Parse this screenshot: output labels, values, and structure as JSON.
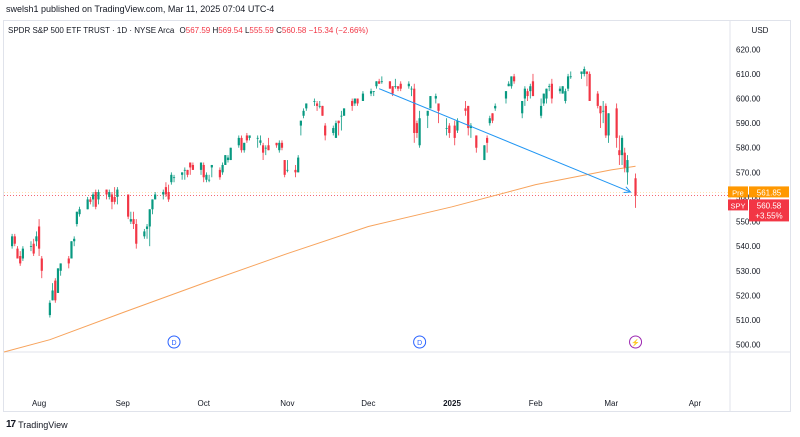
{
  "header": {
    "published": "swelsh1 published on TradingView.com, Mar 11, 2025 07:04 UTC-4"
  },
  "legend": {
    "symbol": "SPDR S&P 500 ETF TRUST · 1D · NYSE Arca",
    "o_label": "O",
    "o_value": "567.59",
    "h_label": "H",
    "h_value": "569.54",
    "l_label": "L",
    "l_value": "555.59",
    "c_label": "C",
    "c_value": "560.58",
    "change": "−15.34 (−2.66%)"
  },
  "currency": "USD",
  "footer": {
    "brand": "TradingView",
    "logo_glyph": "17"
  },
  "colors": {
    "up": "#089981",
    "down": "#f23645",
    "ma": "#f7a35c",
    "arrow": "#2196f3",
    "pre": "#ff9800",
    "event": "#2962ff",
    "split": "#9c27b0"
  },
  "chart_data": {
    "type": "candlestick",
    "ylim": [
      497,
      625
    ],
    "y_ticks": [
      500,
      510,
      520,
      530,
      540,
      550,
      560,
      570,
      580,
      590,
      600,
      610,
      620
    ],
    "y_tick_labels": [
      "500.00",
      "510.00",
      "520.00",
      "530.00",
      "540.00",
      "550.00",
      "560.00",
      "570.00",
      "580.00",
      "590.00",
      "600.00",
      "610.00",
      "620.00"
    ],
    "x_labels": [
      {
        "date": "2024-08-01",
        "label": "Aug"
      },
      {
        "date": "2024-09-01",
        "label": "Sep"
      },
      {
        "date": "2024-10-01",
        "label": "Oct"
      },
      {
        "date": "2024-11-01",
        "label": "Nov"
      },
      {
        "date": "2024-12-01",
        "label": "Dec"
      },
      {
        "date": "2025-01-01",
        "label": "2025"
      },
      {
        "date": "2025-02-01",
        "label": "Feb"
      },
      {
        "date": "2025-03-01",
        "label": "Mar"
      },
      {
        "date": "2025-04-01",
        "label": "Apr"
      }
    ],
    "x_range": [
      "2024-07-19",
      "2025-04-14"
    ],
    "candles": [
      [
        "2024-07-22",
        540,
        545,
        539,
        544
      ],
      [
        "2024-07-23",
        544,
        545,
        540,
        541
      ],
      [
        "2024-07-24",
        539,
        540,
        535,
        535
      ],
      [
        "2024-07-25",
        536,
        538,
        532,
        533
      ],
      [
        "2024-07-26",
        535,
        540,
        534,
        539
      ],
      [
        "2024-07-29",
        540,
        542,
        538,
        540
      ],
      [
        "2024-07-30",
        541,
        543,
        536,
        537
      ],
      [
        "2024-07-31",
        542,
        546,
        540,
        544
      ],
      [
        "2024-08-01",
        548,
        551,
        536,
        539
      ],
      [
        "2024-08-02",
        535,
        536,
        527,
        530
      ],
      [
        "2024-08-05",
        512,
        518,
        511,
        517
      ],
      [
        "2024-08-06",
        518,
        525,
        518,
        522
      ],
      [
        "2024-08-07",
        526,
        527,
        517,
        518
      ],
      [
        "2024-08-08",
        521,
        531,
        521,
        531
      ],
      [
        "2024-08-09",
        530,
        533,
        528,
        533
      ],
      [
        "2024-08-12",
        535,
        536,
        531,
        533
      ],
      [
        "2024-08-13",
        535,
        542,
        535,
        542
      ],
      [
        "2024-08-14",
        542,
        544,
        540,
        543
      ],
      [
        "2024-08-15",
        549,
        554,
        548,
        554
      ],
      [
        "2024-08-16",
        553,
        556,
        552,
        555
      ],
      [
        "2024-08-19",
        555,
        560,
        555,
        559
      ],
      [
        "2024-08-20",
        559,
        560,
        557,
        558
      ],
      [
        "2024-08-21",
        559,
        562,
        556,
        561
      ],
      [
        "2024-08-22",
        562,
        563,
        555,
        556
      ],
      [
        "2024-08-23",
        559,
        563,
        557,
        562
      ],
      [
        "2024-08-26",
        563,
        563,
        559,
        561
      ],
      [
        "2024-08-27",
        560,
        563,
        559,
        562
      ],
      [
        "2024-08-28",
        561,
        562,
        555,
        558
      ],
      [
        "2024-08-29",
        560,
        564,
        557,
        558
      ],
      [
        "2024-08-30",
        560,
        564,
        557,
        563
      ],
      [
        "2024-09-03",
        561,
        561,
        551,
        552
      ],
      [
        "2024-09-04",
        550,
        554,
        549,
        551
      ],
      [
        "2024-09-05",
        551,
        554,
        547,
        549
      ],
      [
        "2024-09-06",
        549,
        551,
        539,
        541
      ],
      [
        "2024-09-09",
        544,
        547,
        543,
        546
      ],
      [
        "2024-09-10",
        547,
        549,
        543,
        548
      ],
      [
        "2024-09-11",
        548,
        555,
        540,
        555
      ],
      [
        "2024-09-12",
        555,
        559,
        553,
        559
      ],
      [
        "2024-09-13",
        559,
        562,
        559,
        561
      ],
      [
        "2024-09-16",
        561,
        563,
        559,
        562
      ],
      [
        "2024-09-17",
        564,
        566,
        560,
        561
      ],
      [
        "2024-09-18",
        562,
        565,
        558,
        559
      ],
      [
        "2024-09-19",
        566,
        570,
        565,
        569
      ],
      [
        "2024-09-20",
        568,
        569,
        566,
        568
      ],
      [
        "2024-09-23",
        569,
        570,
        567,
        570
      ],
      [
        "2024-09-24",
        571,
        572,
        567,
        571
      ],
      [
        "2024-09-25",
        571,
        571,
        568,
        569
      ],
      [
        "2024-09-26",
        574,
        574,
        569,
        572
      ],
      [
        "2024-09-27",
        573,
        574,
        571,
        571
      ],
      [
        "2024-09-30",
        571,
        574,
        569,
        574
      ],
      [
        "2024-10-01",
        573,
        574,
        566,
        568
      ],
      [
        "2024-10-02",
        567,
        570,
        566,
        569
      ],
      [
        "2024-10-03",
        567,
        569,
        566,
        567
      ],
      [
        "2024-10-04",
        572,
        573,
        568,
        573
      ],
      [
        "2024-10-07",
        571,
        572,
        567,
        568
      ],
      [
        "2024-10-08",
        570,
        574,
        569,
        573
      ],
      [
        "2024-10-09",
        573,
        577,
        573,
        577
      ],
      [
        "2024-10-10",
        575,
        577,
        574,
        576
      ],
      [
        "2024-10-11",
        575,
        580,
        575,
        580
      ],
      [
        "2024-10-14",
        581,
        585,
        580,
        584
      ],
      [
        "2024-10-15",
        584,
        585,
        578,
        579
      ],
      [
        "2024-10-16",
        579,
        582,
        578,
        582
      ],
      [
        "2024-10-17",
        585,
        586,
        582,
        583
      ],
      [
        "2024-10-18",
        584,
        585,
        583,
        585
      ],
      [
        "2024-10-21",
        584,
        585,
        580,
        584
      ],
      [
        "2024-10-22",
        582,
        585,
        581,
        583
      ],
      [
        "2024-10-23",
        581,
        582,
        575,
        578
      ],
      [
        "2024-10-24",
        580,
        581,
        577,
        580
      ],
      [
        "2024-10-25",
        581,
        584,
        579,
        579
      ],
      [
        "2024-10-28",
        582,
        582,
        580,
        581
      ],
      [
        "2024-10-29",
        579,
        583,
        578,
        582
      ],
      [
        "2024-10-30",
        582,
        583,
        579,
        580
      ],
      [
        "2024-10-31",
        575,
        575,
        568,
        569
      ],
      [
        "2024-11-01",
        571,
        575,
        570,
        571
      ],
      [
        "2024-11-04",
        571,
        573,
        568,
        570
      ],
      [
        "2024-11-05",
        570,
        577,
        570,
        576
      ],
      [
        "2024-11-06",
        589,
        591,
        585,
        591
      ],
      [
        "2024-11-07",
        593,
        596,
        592,
        595
      ],
      [
        "2024-11-08",
        596,
        598,
        595,
        598
      ],
      [
        "2024-11-11",
        599,
        600,
        597,
        599
      ],
      [
        "2024-11-12",
        598,
        599,
        595,
        597
      ],
      [
        "2024-11-13",
        597,
        599,
        596,
        597
      ],
      [
        "2024-11-14",
        597,
        597,
        593,
        593
      ],
      [
        "2024-11-15",
        589,
        590,
        583,
        585
      ],
      [
        "2024-11-18",
        586,
        589,
        585,
        588
      ],
      [
        "2024-11-19",
        584,
        591,
        584,
        590
      ],
      [
        "2024-11-20",
        591,
        591,
        585,
        590
      ],
      [
        "2024-11-21",
        593,
        595,
        587,
        593
      ],
      [
        "2024-11-22",
        593,
        596,
        593,
        596
      ],
      [
        "2024-11-25",
        599,
        600,
        595,
        597
      ],
      [
        "2024-11-26",
        598,
        600,
        597,
        600
      ],
      [
        "2024-11-27",
        600,
        600,
        597,
        598
      ],
      [
        "2024-11-29",
        599,
        603,
        599,
        602
      ],
      [
        "2024-12-02",
        602,
        604,
        601,
        603
      ],
      [
        "2024-12-03",
        603,
        603,
        601,
        603
      ],
      [
        "2024-12-04",
        605,
        607,
        604,
        607
      ],
      [
        "2024-12-05",
        607,
        608,
        606,
        606
      ],
      [
        "2024-12-06",
        607,
        609,
        606,
        607
      ],
      [
        "2024-12-09",
        607,
        607,
        604,
        604
      ],
      [
        "2024-12-10",
        605,
        605,
        601,
        602
      ],
      [
        "2024-12-11",
        605,
        608,
        604,
        605
      ],
      [
        "2024-12-12",
        605,
        605,
        603,
        604
      ],
      [
        "2024-12-13",
        606,
        607,
        603,
        604
      ],
      [
        "2024-12-16",
        605,
        607,
        604,
        606
      ],
      [
        "2024-12-17",
        604,
        605,
        601,
        604
      ],
      [
        "2024-12-18",
        604,
        606,
        582,
        586
      ],
      [
        "2024-12-19",
        590,
        591,
        584,
        586
      ],
      [
        "2024-12-20",
        581,
        595,
        580,
        592
      ],
      [
        "2024-12-23",
        593,
        595,
        588,
        595
      ],
      [
        "2024-12-24",
        596,
        601,
        596,
        601
      ],
      [
        "2024-12-26",
        600,
        602,
        598,
        601
      ],
      [
        "2024-12-27",
        598,
        598,
        590,
        595
      ],
      [
        "2024-12-30",
        588,
        592,
        585,
        588
      ],
      [
        "2024-12-31",
        589,
        590,
        584,
        586
      ],
      [
        "2025-01-02",
        589,
        591,
        581,
        584
      ],
      [
        "2025-01-03",
        587,
        592,
        586,
        591
      ],
      [
        "2025-01-06",
        596,
        599,
        593,
        595
      ],
      [
        "2025-01-07",
        597,
        597,
        585,
        588
      ],
      [
        "2025-01-08",
        588,
        590,
        584,
        589
      ],
      [
        "2025-01-10",
        585,
        585,
        578,
        580
      ],
      [
        "2025-01-13",
        575,
        581,
        575,
        581
      ],
      [
        "2025-01-14",
        584,
        585,
        578,
        582
      ],
      [
        "2025-01-15",
        590,
        593,
        589,
        592
      ],
      [
        "2025-01-16",
        594,
        594,
        590,
        591
      ],
      [
        "2025-01-17",
        596,
        598,
        595,
        597
      ],
      [
        "2025-01-21",
        600,
        603,
        598,
        603
      ],
      [
        "2025-01-22",
        605,
        607,
        605,
        606
      ],
      [
        "2025-01-23",
        605,
        609,
        604,
        609
      ],
      [
        "2025-01-24",
        609,
        610,
        606,
        607
      ],
      [
        "2025-01-27",
        594,
        599,
        592,
        599
      ],
      [
        "2025-01-28",
        600,
        605,
        597,
        604
      ],
      [
        "2025-01-29",
        603,
        604,
        599,
        601
      ],
      [
        "2025-01-30",
        603,
        606,
        600,
        605
      ],
      [
        "2025-01-31",
        607,
        610,
        601,
        601
      ],
      [
        "2025-02-03",
        593,
        600,
        592,
        597
      ],
      [
        "2025-02-04",
        598,
        602,
        597,
        602
      ],
      [
        "2025-02-05",
        600,
        604,
        598,
        604
      ],
      [
        "2025-02-06",
        605,
        606,
        603,
        605
      ],
      [
        "2025-02-07",
        606,
        608,
        598,
        600
      ],
      [
        "2025-02-10",
        603,
        605,
        602,
        604
      ],
      [
        "2025-02-11",
        602,
        605,
        602,
        605
      ],
      [
        "2025-02-12",
        599,
        604,
        598,
        603
      ],
      [
        "2025-02-13",
        604,
        610,
        603,
        609
      ],
      [
        "2025-02-14",
        609,
        611,
        608,
        609
      ],
      [
        "2025-02-18",
        610,
        611,
        608,
        611
      ],
      [
        "2025-02-19",
        610,
        613,
        609,
        612
      ],
      [
        "2025-02-20",
        611,
        611,
        605,
        610
      ],
      [
        "2025-02-21",
        610,
        611,
        599,
        599
      ],
      [
        "2025-02-24",
        602,
        603,
        596,
        597
      ],
      [
        "2025-02-25",
        597,
        597,
        588,
        594
      ],
      [
        "2025-02-26",
        595,
        599,
        590,
        595
      ],
      [
        "2025-02-27",
        597,
        598,
        584,
        585
      ],
      [
        "2025-02-28",
        585,
        594,
        582,
        594
      ],
      [
        "2025-03-03",
        596,
        598,
        580,
        584
      ],
      [
        "2025-03-04",
        579,
        585,
        573,
        577
      ],
      [
        "2025-03-05",
        577,
        585,
        573,
        584
      ],
      [
        "2025-03-06",
        578,
        580,
        570,
        572
      ],
      [
        "2025-03-07",
        570,
        577,
        565,
        575
      ],
      [
        "2025-03-10",
        567.59,
        569.54,
        555.59,
        560.58
      ]
    ],
    "moving_average": {
      "name": "",
      "points": [
        [
          "2024-07-19",
          497
        ],
        [
          "2024-08-05",
          502
        ],
        [
          "2024-09-01",
          513
        ],
        [
          "2024-10-01",
          525
        ],
        [
          "2024-11-01",
          537
        ],
        [
          "2024-12-01",
          548
        ],
        [
          "2025-01-01",
          556
        ],
        [
          "2025-02-01",
          565
        ],
        [
          "2025-03-01",
          571
        ],
        [
          "2025-03-10",
          572.5
        ]
      ]
    },
    "trend_arrow": {
      "from": [
        "2024-12-05",
        604
      ],
      "to": [
        "2025-03-10",
        562
      ]
    },
    "markers": [
      {
        "date": "2024-09-20",
        "label": "D",
        "kind": "dividend"
      },
      {
        "date": "2024-12-20",
        "label": "D",
        "kind": "dividend"
      },
      {
        "date": "2025-03-10",
        "label": "⚡",
        "kind": "split"
      }
    ],
    "price_tags": [
      {
        "name": "Pre",
        "value": "561.85",
        "price": 561.85
      },
      {
        "name": "SPY",
        "value": "560.58",
        "price": 560.58,
        "change": "+3.55%"
      }
    ],
    "grid": false
  }
}
